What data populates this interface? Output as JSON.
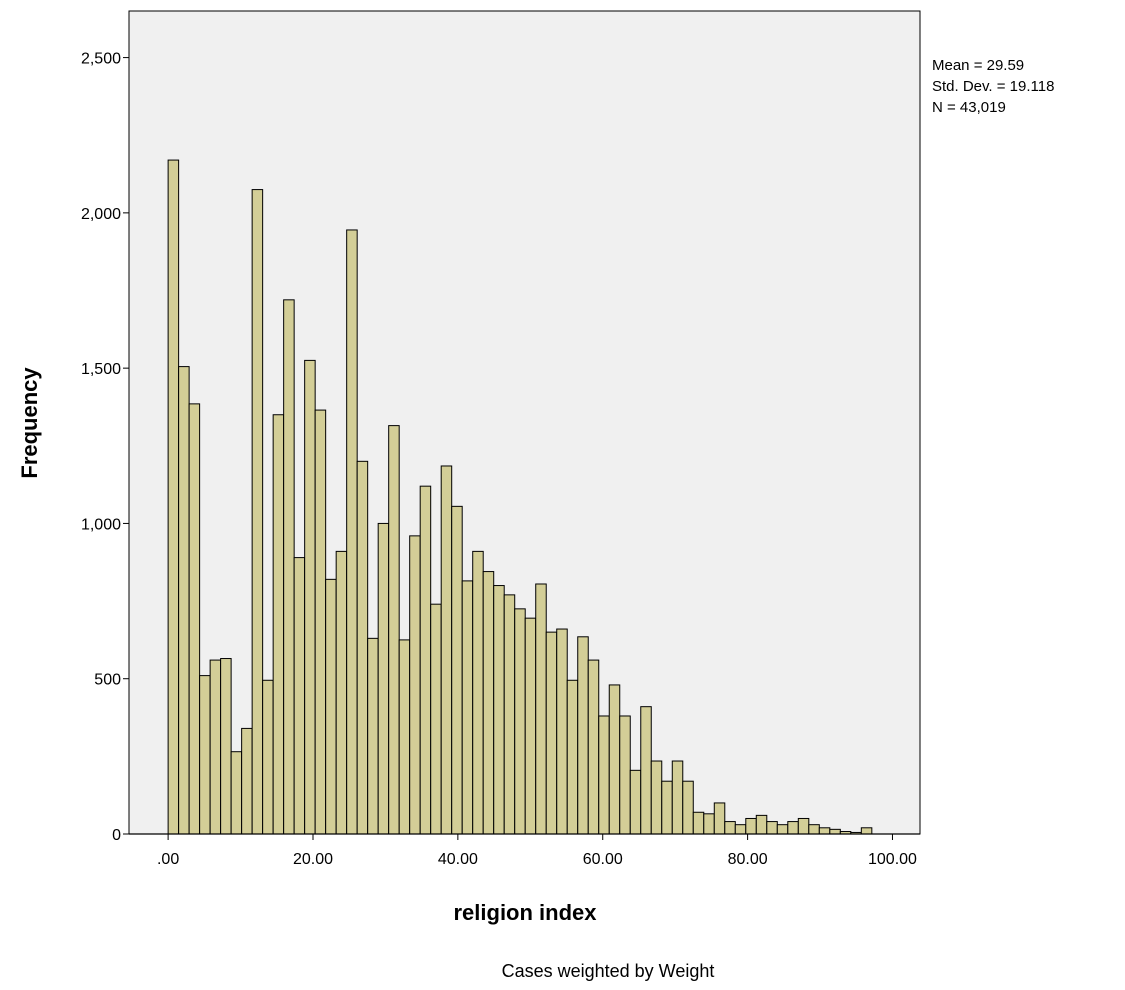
{
  "chart_data": {
    "type": "bar",
    "subtype": "histogram",
    "xlabel": "religion index",
    "ylabel": "Frequency",
    "footnote": "Cases weighted by Weight",
    "stats": {
      "mean": "Mean = 29.59",
      "sd": "Std. Dev. = 19.118",
      "n": "N = 43,019"
    },
    "xlim": [
      -5.4,
      103.8
    ],
    "ylim": [
      0,
      2650
    ],
    "x_ticks": [
      0,
      20,
      40,
      60,
      80,
      100
    ],
    "x_tick_labels": [
      ".00",
      "20.00",
      "40.00",
      "60.00",
      "80.00",
      "100.00"
    ],
    "y_ticks": [
      0,
      500,
      1000,
      1500,
      2000,
      2500
    ],
    "y_tick_labels": [
      "0",
      "500",
      "1,000",
      "1,500",
      "2,000",
      "2,500"
    ],
    "bin_start": 0,
    "bin_width": 1.45,
    "values": [
      2170,
      1505,
      1385,
      510,
      560,
      565,
      265,
      340,
      2075,
      495,
      1350,
      1720,
      890,
      1525,
      1365,
      820,
      910,
      1945,
      1200,
      630,
      1000,
      1315,
      625,
      960,
      1120,
      740,
      1185,
      1055,
      815,
      910,
      845,
      800,
      770,
      725,
      695,
      805,
      650,
      660,
      495,
      635,
      560,
      380,
      480,
      380,
      205,
      410,
      235,
      170,
      235,
      170,
      70,
      65,
      100,
      40,
      30,
      50,
      60,
      40,
      30,
      40,
      50,
      30,
      20,
      15,
      8,
      5,
      20
    ],
    "colors": {
      "bar_fill": "#d3ce97",
      "bar_stroke": "#000000",
      "plot_background": "#f0f0f0",
      "frame": "#000000"
    },
    "grid": false
  }
}
